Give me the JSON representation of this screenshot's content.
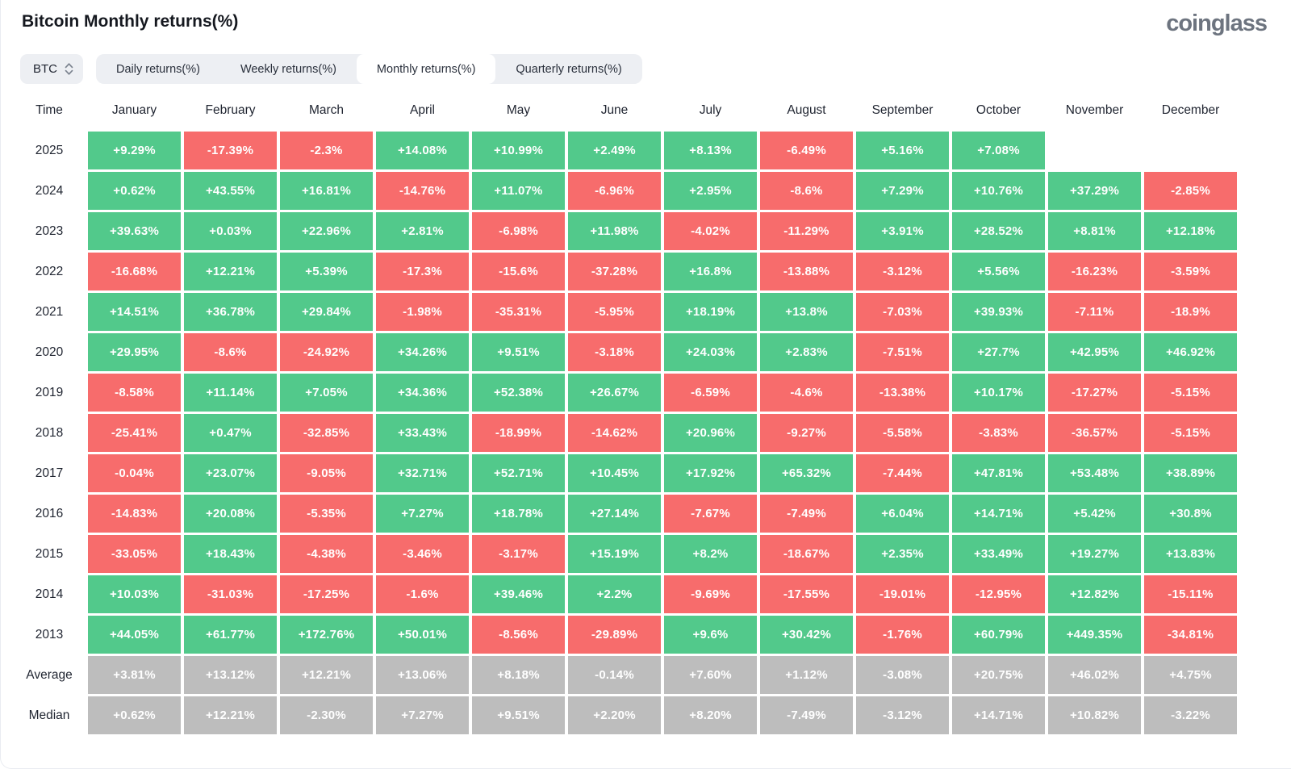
{
  "header": {
    "title": "Bitcoin Monthly returns(%)",
    "logo": "coinglass"
  },
  "controls": {
    "coin": "BTC",
    "coin_selector_icon": "up-down-chevron-icon",
    "tabs": [
      {
        "label": "Daily returns(%)",
        "active": false
      },
      {
        "label": "Weekly returns(%)",
        "active": false
      },
      {
        "label": "Monthly returns(%)",
        "active": true
      },
      {
        "label": "Quarterly returns(%)",
        "active": false
      }
    ]
  },
  "colors": {
    "positive": "#52c98b",
    "negative": "#f76c6c",
    "summary": "#bdbdbd",
    "cell_text": "#ffffff"
  },
  "table": {
    "columns": [
      "Time",
      "January",
      "February",
      "March",
      "April",
      "May",
      "June",
      "July",
      "August",
      "September",
      "October",
      "November",
      "December"
    ],
    "rows": [
      {
        "label": "2025",
        "type": "data",
        "values": [
          "+9.29%",
          "-17.39%",
          "-2.3%",
          "+14.08%",
          "+10.99%",
          "+2.49%",
          "+8.13%",
          "-6.49%",
          "+5.16%",
          "+7.08%",
          null,
          null
        ]
      },
      {
        "label": "2024",
        "type": "data",
        "values": [
          "+0.62%",
          "+43.55%",
          "+16.81%",
          "-14.76%",
          "+11.07%",
          "-6.96%",
          "+2.95%",
          "-8.6%",
          "+7.29%",
          "+10.76%",
          "+37.29%",
          "-2.85%"
        ]
      },
      {
        "label": "2023",
        "type": "data",
        "values": [
          "+39.63%",
          "+0.03%",
          "+22.96%",
          "+2.81%",
          "-6.98%",
          "+11.98%",
          "-4.02%",
          "-11.29%",
          "+3.91%",
          "+28.52%",
          "+8.81%",
          "+12.18%"
        ]
      },
      {
        "label": "2022",
        "type": "data",
        "values": [
          "-16.68%",
          "+12.21%",
          "+5.39%",
          "-17.3%",
          "-15.6%",
          "-37.28%",
          "+16.8%",
          "-13.88%",
          "-3.12%",
          "+5.56%",
          "-16.23%",
          "-3.59%"
        ]
      },
      {
        "label": "2021",
        "type": "data",
        "values": [
          "+14.51%",
          "+36.78%",
          "+29.84%",
          "-1.98%",
          "-35.31%",
          "-5.95%",
          "+18.19%",
          "+13.8%",
          "-7.03%",
          "+39.93%",
          "-7.11%",
          "-18.9%"
        ]
      },
      {
        "label": "2020",
        "type": "data",
        "values": [
          "+29.95%",
          "-8.6%",
          "-24.92%",
          "+34.26%",
          "+9.51%",
          "-3.18%",
          "+24.03%",
          "+2.83%",
          "-7.51%",
          "+27.7%",
          "+42.95%",
          "+46.92%"
        ]
      },
      {
        "label": "2019",
        "type": "data",
        "values": [
          "-8.58%",
          "+11.14%",
          "+7.05%",
          "+34.36%",
          "+52.38%",
          "+26.67%",
          "-6.59%",
          "-4.6%",
          "-13.38%",
          "+10.17%",
          "-17.27%",
          "-5.15%"
        ]
      },
      {
        "label": "2018",
        "type": "data",
        "values": [
          "-25.41%",
          "+0.47%",
          "-32.85%",
          "+33.43%",
          "-18.99%",
          "-14.62%",
          "+20.96%",
          "-9.27%",
          "-5.58%",
          "-3.83%",
          "-36.57%",
          "-5.15%"
        ]
      },
      {
        "label": "2017",
        "type": "data",
        "values": [
          "-0.04%",
          "+23.07%",
          "-9.05%",
          "+32.71%",
          "+52.71%",
          "+10.45%",
          "+17.92%",
          "+65.32%",
          "-7.44%",
          "+47.81%",
          "+53.48%",
          "+38.89%"
        ]
      },
      {
        "label": "2016",
        "type": "data",
        "values": [
          "-14.83%",
          "+20.08%",
          "-5.35%",
          "+7.27%",
          "+18.78%",
          "+27.14%",
          "-7.67%",
          "-7.49%",
          "+6.04%",
          "+14.71%",
          "+5.42%",
          "+30.8%"
        ]
      },
      {
        "label": "2015",
        "type": "data",
        "values": [
          "-33.05%",
          "+18.43%",
          "-4.38%",
          "-3.46%",
          "-3.17%",
          "+15.19%",
          "+8.2%",
          "-18.67%",
          "+2.35%",
          "+33.49%",
          "+19.27%",
          "+13.83%"
        ]
      },
      {
        "label": "2014",
        "type": "data",
        "values": [
          "+10.03%",
          "-31.03%",
          "-17.25%",
          "-1.6%",
          "+39.46%",
          "+2.2%",
          "-9.69%",
          "-17.55%",
          "-19.01%",
          "-12.95%",
          "+12.82%",
          "-15.11%"
        ]
      },
      {
        "label": "2013",
        "type": "data",
        "values": [
          "+44.05%",
          "+61.77%",
          "+172.76%",
          "+50.01%",
          "-8.56%",
          "-29.89%",
          "+9.6%",
          "+30.42%",
          "-1.76%",
          "+60.79%",
          "+449.35%",
          "-34.81%"
        ]
      },
      {
        "label": "Average",
        "type": "summary",
        "values": [
          "+3.81%",
          "+13.12%",
          "+12.21%",
          "+13.06%",
          "+8.18%",
          "-0.14%",
          "+7.60%",
          "+1.12%",
          "-3.08%",
          "+20.75%",
          "+46.02%",
          "+4.75%"
        ]
      },
      {
        "label": "Median",
        "type": "summary",
        "values": [
          "+0.62%",
          "+12.21%",
          "-2.30%",
          "+7.27%",
          "+9.51%",
          "+2.20%",
          "+8.20%",
          "-7.49%",
          "-3.12%",
          "+14.71%",
          "+10.82%",
          "-3.22%"
        ]
      }
    ]
  }
}
